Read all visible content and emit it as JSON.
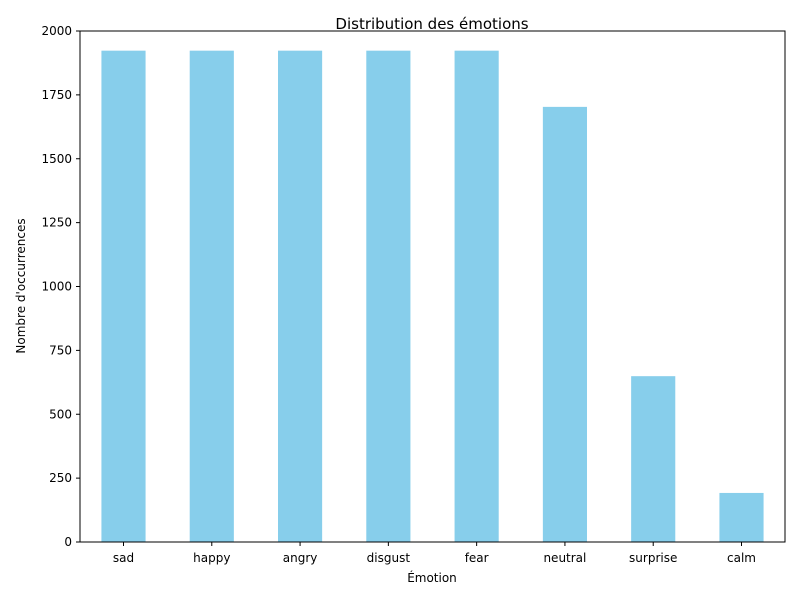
{
  "chart_data": {
    "type": "bar",
    "title": "Distribution des émotions",
    "xlabel": "Émotion",
    "ylabel": "Nombre d'occurrences",
    "categories": [
      "sad",
      "happy",
      "angry",
      "disgust",
      "fear",
      "neutral",
      "surprise",
      "calm"
    ],
    "values": [
      1923,
      1923,
      1923,
      1923,
      1923,
      1703,
      649,
      192
    ],
    "ylim": [
      0,
      2000
    ],
    "yticks": [
      0,
      250,
      500,
      750,
      1000,
      1250,
      1500,
      1750,
      2000
    ],
    "grid": false,
    "bar_color": "#87ceeb"
  }
}
